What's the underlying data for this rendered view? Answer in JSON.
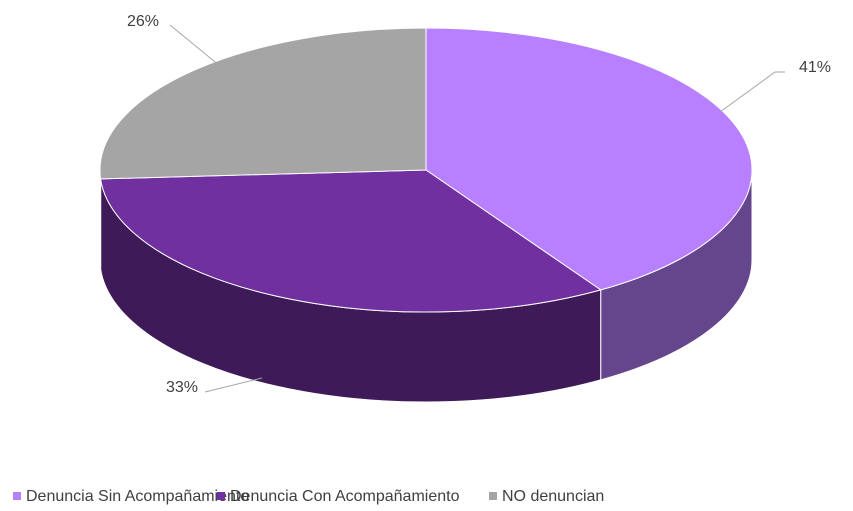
{
  "chart_data": {
    "type": "pie",
    "categories": [
      "Denuncia Sin Acompañamiento",
      "Denuncia Con Acompañamiento",
      "NO denuncian"
    ],
    "values": [
      41,
      33,
      26
    ],
    "value_labels": [
      "41%",
      "33%",
      "26%"
    ],
    "colors": [
      "#b880ff",
      "#7030a0",
      "#a5a5a5"
    ],
    "legend": "bottom"
  }
}
